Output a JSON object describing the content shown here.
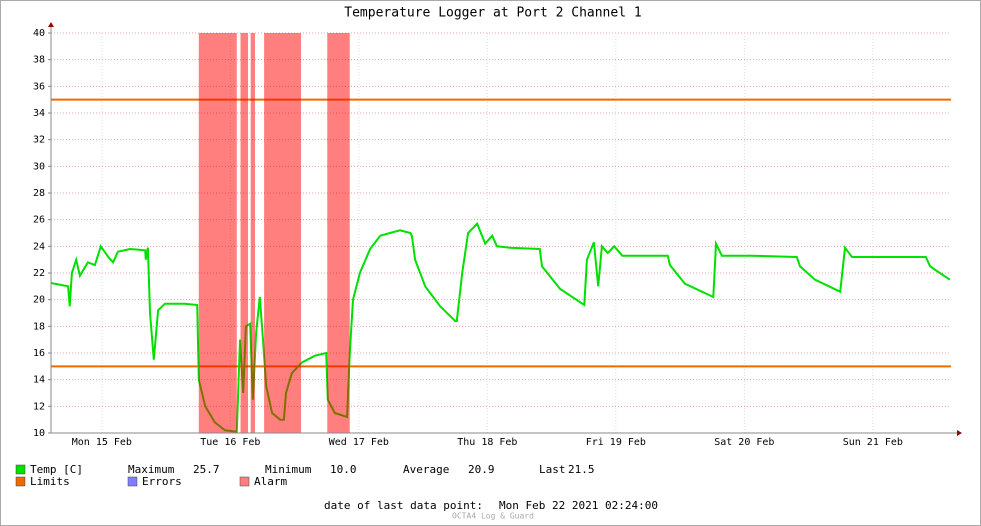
{
  "chart_data": {
    "type": "line",
    "title": "Temperature Logger at Port 2 Channel 1",
    "x": [
      2.5,
      5.7,
      6.0,
      6.4,
      7.2,
      7.9,
      9.4,
      10.7,
      11.8,
      13.2,
      14.1,
      15.0,
      17.3,
      20.1,
      20.2,
      20.6,
      21.0,
      21.7,
      22.5,
      23.8,
      27.5,
      29.8,
      30.1,
      31.3,
      33.1,
      35.0,
      37.2,
      37.8,
      38.4,
      38.9,
      39.7,
      40.2,
      40.8,
      41.5,
      42.1,
      42.7,
      43.8,
      45.3,
      46.0,
      46.4,
      47.5,
      49.4,
      51.8,
      53.9,
      54.2,
      55.5,
      57.8,
      58.3,
      58.9,
      60.2,
      62.1,
      64.0,
      65.8,
      67.7,
      69.6,
      69.9,
      70.5,
      72.4,
      75.2,
      78.0,
      78.3,
      79.3,
      80.4,
      82.1,
      83.6,
      84.9,
      85.8,
      88.2,
      93.8,
      94.2,
      97.6,
      102.1,
      102.6,
      103.9,
      104.7,
      105.4,
      106.5,
      107.7,
      109.2,
      112.5,
      117.7,
      118.1,
      120.9,
      126.2,
      126.7,
      127.8,
      133.1,
      141.8,
      142.4,
      145.2,
      149.9,
      150.8,
      152.1,
      157.3,
      165.9,
      166.7,
      168.5,
      170.4
    ],
    "series": [
      {
        "name": "Temp [C]",
        "color": "#00e000",
        "values": [
          21.25,
          21.0,
          19.5,
          22.0,
          23.0,
          21.8,
          22.8,
          22.6,
          24.0,
          23.2,
          22.8,
          23.6,
          23.8,
          23.7,
          23.0,
          23.9,
          19.0,
          15.5,
          19.2,
          19.7,
          19.7,
          19.6,
          14.0,
          12.0,
          10.8,
          10.2,
          10.1,
          17.0,
          13.0,
          18.0,
          18.2,
          12.5,
          17.5,
          20.2,
          17.0,
          13.5,
          11.5,
          11.0,
          11.0,
          13.0,
          14.5,
          15.3,
          15.8,
          16.0,
          12.5,
          11.5,
          11.2,
          16.0,
          20.0,
          22.0,
          23.8,
          24.8,
          25.0,
          25.2,
          25.0,
          24.8,
          23.0,
          21.0,
          19.5,
          18.4,
          18.4,
          22.0,
          25.0,
          25.7,
          24.2,
          24.8,
          24.0,
          23.9,
          23.8,
          22.5,
          20.8,
          19.6,
          23.0,
          24.3,
          21.0,
          24.0,
          23.5,
          24.0,
          23.3,
          23.3,
          23.3,
          22.6,
          21.2,
          20.2,
          24.2,
          23.3,
          23.3,
          23.2,
          22.5,
          21.5,
          20.6,
          23.9,
          23.2,
          23.2,
          23.2,
          22.5,
          22.0,
          21.5
        ]
      }
    ],
    "xlim": [
      2.5,
      170.6
    ],
    "xticks": [
      {
        "value": 12,
        "label": "Mon 15 Feb"
      },
      {
        "value": 36,
        "label": "Tue 16 Feb"
      },
      {
        "value": 60,
        "label": "Wed 17 Feb"
      },
      {
        "value": 84,
        "label": "Thu 18 Feb"
      },
      {
        "value": 108,
        "label": "Fri 19 Feb"
      },
      {
        "value": 132,
        "label": "Sat 20 Feb"
      },
      {
        "value": 156,
        "label": "Sun 21 Feb"
      }
    ],
    "ylim": [
      10,
      40
    ],
    "yticks": [
      10,
      12,
      14,
      16,
      18,
      20,
      22,
      24,
      26,
      28,
      30,
      32,
      34,
      36,
      38,
      40
    ],
    "grid": true,
    "limits": {
      "name": "Limits",
      "color": "#ee6a00",
      "values": [
        15,
        35
      ]
    },
    "errors": {
      "name": "Errors",
      "color": "#7f7fff"
    },
    "alarm": {
      "name": "Alarm",
      "color": "#ff0000",
      "ranges": [
        [
          30.1,
          37.2
        ],
        [
          37.9,
          39.3
        ],
        [
          39.8,
          40.6
        ],
        [
          42.3,
          49.2
        ],
        [
          54.1,
          58.3
        ]
      ]
    },
    "stats": {
      "labels": [
        "Maximum",
        "Minimum",
        "Average",
        "Last"
      ],
      "values": [
        25.7,
        10,
        20.9,
        21.5
      ],
      "value_labels": [
        "25.7",
        "10.0",
        "20.9",
        "21.5"
      ]
    },
    "footer": {
      "label": "date of last data point:",
      "value": "Mon Feb 22 2021 02:24:00"
    },
    "credit": "OCTA4 Log & Guard"
  }
}
